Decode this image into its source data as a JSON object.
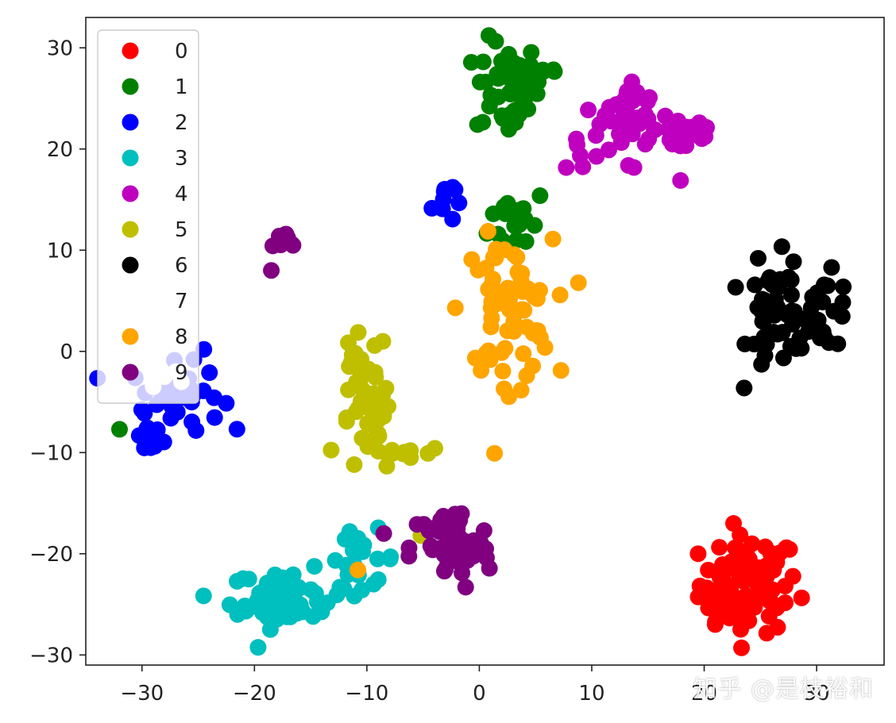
{
  "chart_data": {
    "type": "scatter",
    "title": "",
    "xlabel": "",
    "ylabel": "",
    "xlim": [
      -35,
      36
    ],
    "ylim": [
      -31,
      33
    ],
    "grid": false,
    "legend_position": "top-left",
    "xticks": [
      -30,
      -20,
      -10,
      0,
      10,
      20,
      30
    ],
    "yticks": [
      -30,
      -20,
      -10,
      0,
      10,
      20,
      30
    ],
    "series": [
      {
        "name": "0",
        "color": "#ff0000",
        "clusters": [
          {
            "cx": 24,
            "cy": -23,
            "sx": 2.2,
            "sy": 2.4,
            "n": 80
          },
          {
            "cx": 21.5,
            "cy": -26,
            "sx": 1.2,
            "sy": 0.8,
            "n": 12
          }
        ],
        "points": []
      },
      {
        "name": "1",
        "color": "#008000",
        "clusters": [
          {
            "cx": 2.5,
            "cy": 26,
            "sx": 1.4,
            "sy": 2.4,
            "n": 50
          },
          {
            "cx": 5.5,
            "cy": 27.5,
            "sx": 1,
            "sy": 0.8,
            "n": 8
          },
          {
            "cx": 3.5,
            "cy": 13,
            "sx": 1.3,
            "sy": 1.6,
            "n": 18
          }
        ],
        "points": [
          [
            -32,
            -7.7
          ]
        ]
      },
      {
        "name": "2",
        "color": "#0000ff",
        "clusters": [
          {
            "cx": -27,
            "cy": -4.5,
            "sx": 2,
            "sy": 1.6,
            "n": 40
          },
          {
            "cx": -29.5,
            "cy": -8.5,
            "sx": 0.8,
            "sy": 1.1,
            "n": 10
          },
          {
            "cx": -3.2,
            "cy": 15,
            "sx": 0.5,
            "sy": 1.2,
            "n": 9
          }
        ],
        "points": [
          [
            -24.5,
            0.2
          ],
          [
            -24,
            -2.1
          ]
        ]
      },
      {
        "name": "3",
        "color": "#00bfbf",
        "clusters": [
          {
            "cx": -17,
            "cy": -24.5,
            "sx": 2.6,
            "sy": 1.4,
            "n": 55
          },
          {
            "cx": -10.5,
            "cy": -20.5,
            "sx": 1.6,
            "sy": 1.4,
            "n": 20
          }
        ],
        "points": [
          [
            -20.5,
            -22.5
          ],
          [
            -21.5,
            -26
          ]
        ]
      },
      {
        "name": "4",
        "color": "#bf00bf",
        "clusters": [
          {
            "cx": 12.5,
            "cy": 21.5,
            "sx": 2.4,
            "sy": 1.8,
            "n": 38
          },
          {
            "cx": 18.5,
            "cy": 22,
            "sx": 1.4,
            "sy": 1.5,
            "n": 25
          },
          {
            "cx": 14,
            "cy": 25,
            "sx": 1,
            "sy": 0.5,
            "n": 8
          }
        ],
        "points": []
      },
      {
        "name": "5",
        "color": "#bfbf00",
        "clusters": [
          {
            "cx": -10.5,
            "cy": -1.5,
            "sx": 1.2,
            "sy": 1.6,
            "n": 18
          },
          {
            "cx": -10,
            "cy": -7.5,
            "sx": 1.2,
            "sy": 2.5,
            "n": 30
          },
          {
            "cx": -6.5,
            "cy": -10,
            "sx": 1.7,
            "sy": 0.3,
            "n": 10
          }
        ],
        "points": [
          [
            -5.2,
            -18.2
          ]
        ]
      },
      {
        "name": "6",
        "color": "#000000",
        "clusters": [
          {
            "cx": 26.5,
            "cy": 3.5,
            "sx": 1.3,
            "sy": 2.8,
            "n": 42
          },
          {
            "cx": 30.5,
            "cy": 4,
            "sx": 1.4,
            "sy": 1.8,
            "n": 30
          }
        ],
        "points": [
          [
            24.8,
            9.2
          ]
        ]
      },
      {
        "name": "7",
        "color": "#ffffff",
        "clusters": [],
        "points": [
          [
            -28,
            -2.5
          ],
          [
            -27,
            -2
          ],
          [
            -26.5,
            -3
          ],
          [
            -29,
            -3.5
          ],
          [
            -28.5,
            -1.8
          ]
        ]
      },
      {
        "name": "8",
        "color": "#ffa500",
        "clusters": [
          {
            "cx": 2.5,
            "cy": 4,
            "sx": 2,
            "sy": 3.5,
            "n": 70
          }
        ],
        "points": [
          [
            -10.8,
            -21.6
          ],
          [
            2.2,
            -3.7
          ],
          [
            1.5,
            10.1
          ]
        ]
      },
      {
        "name": "9",
        "color": "#800080",
        "clusters": [
          {
            "cx": -2.5,
            "cy": -19.5,
            "sx": 1.8,
            "sy": 2.1,
            "n": 55
          },
          {
            "cx": -17,
            "cy": 11,
            "sx": 0.8,
            "sy": 0.6,
            "n": 8
          }
        ],
        "points": [
          [
            -18.5,
            8
          ],
          [
            -8.5,
            -18
          ],
          [
            -0.5,
            -18.7
          ]
        ]
      }
    ]
  },
  "watermark": "知乎 @是枝裕和"
}
